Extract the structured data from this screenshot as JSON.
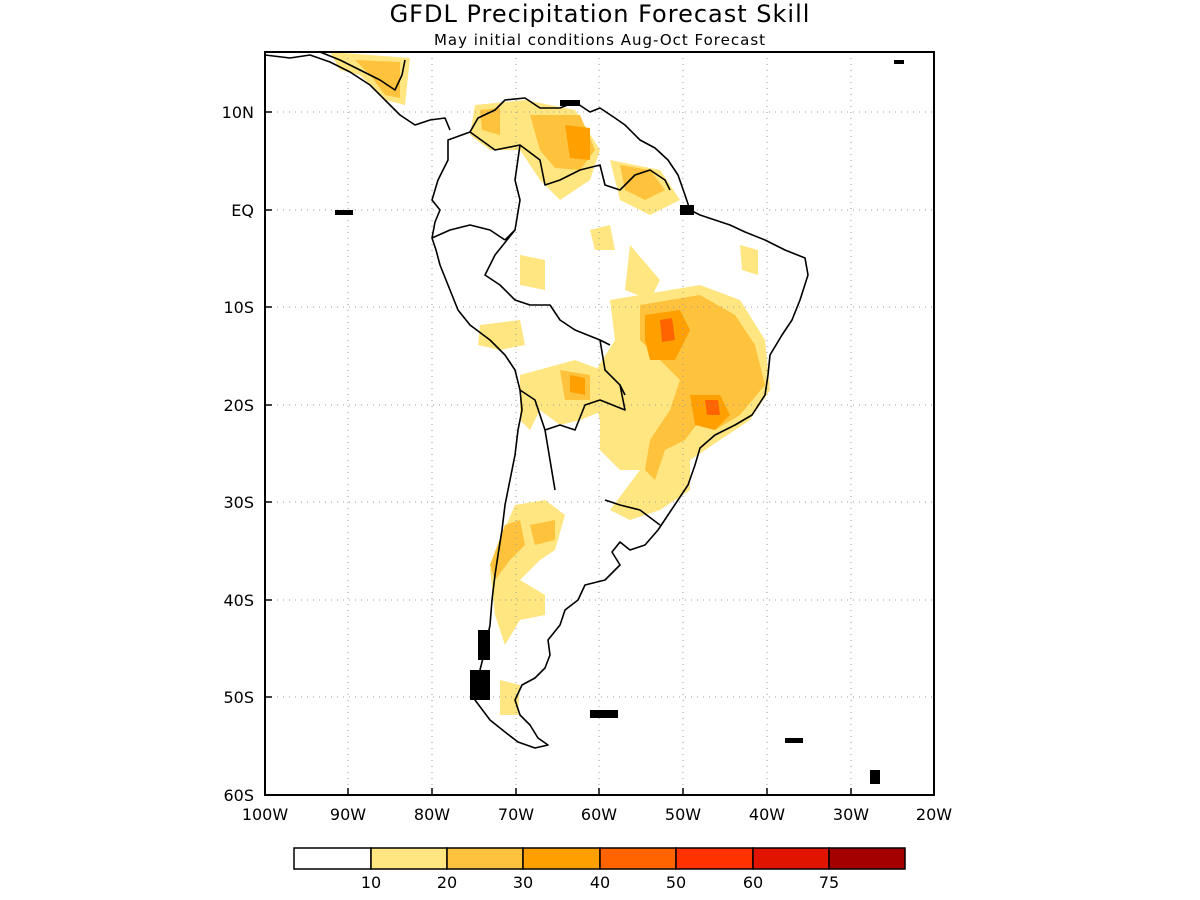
{
  "title": "GFDL Precipitation Forecast Skill",
  "subtitle": "May initial conditions  Aug-Oct Forecast",
  "axes": {
    "lon_ticks": [
      "100W",
      "90W",
      "80W",
      "70W",
      "60W",
      "50W",
      "40W",
      "30W",
      "20W"
    ],
    "lat_ticks": [
      "10N",
      "EQ",
      "10S",
      "20S",
      "30S",
      "40S",
      "50S",
      "60S"
    ],
    "lon_range": [
      -100,
      -20
    ],
    "lat_range": [
      -60,
      15.5
    ],
    "grid": true
  },
  "legend": {
    "labels": [
      "10",
      "20",
      "30",
      "40",
      "50",
      "60",
      "75"
    ],
    "colors": [
      "#ffffff",
      "#ffe680",
      "#ffc23c",
      "#ffa000",
      "#ff6400",
      "#ff3200",
      "#e11400",
      "#a50000"
    ]
  }
}
